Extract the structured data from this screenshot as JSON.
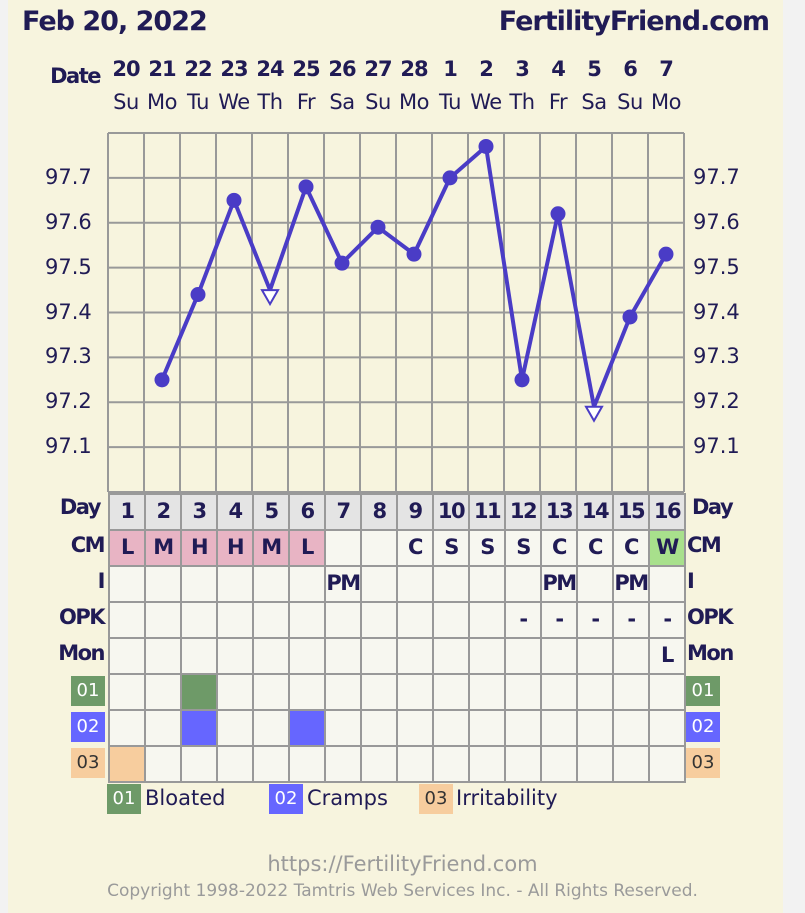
{
  "header": {
    "date": "Feb 20, 2022",
    "site": "FertilityFriend.com"
  },
  "labels": {
    "date": "Date",
    "day": "Day",
    "cm": "CM",
    "i": "I",
    "opk": "OPK",
    "mon": "Mon",
    "s1": "01",
    "s2": "02",
    "s3": "03"
  },
  "colors": {
    "line": "#4a3cc6",
    "grid": "#999999",
    "cm_fill": "#e8b4c4",
    "cm_w_fill": "#a8e08c",
    "day_row": "#e4e4e4",
    "cell": "#f7f7f0",
    "symptom_01": "#6e9a68",
    "symptom_02": "#6666ff",
    "symptom_03": "#f7cd9e"
  },
  "chart_data": {
    "type": "line",
    "ylim": [
      97.0,
      97.8
    ],
    "yticks": [
      "97.1",
      "97.2",
      "97.3",
      "97.4",
      "97.5",
      "97.6",
      "97.7"
    ],
    "grid": true,
    "dates": [
      "20",
      "21",
      "22",
      "23",
      "24",
      "25",
      "26",
      "27",
      "28",
      "1",
      "2",
      "3",
      "4",
      "5",
      "6",
      "7"
    ],
    "weekdays": [
      "Su",
      "Mo",
      "Tu",
      "We",
      "Th",
      "Fr",
      "Sa",
      "Su",
      "Mo",
      "Tu",
      "We",
      "Th",
      "Fr",
      "Sa",
      "Su",
      "Mo"
    ],
    "cycle_days": [
      "1",
      "2",
      "3",
      "4",
      "5",
      "6",
      "7",
      "8",
      "9",
      "10",
      "11",
      "12",
      "13",
      "14",
      "15",
      "16"
    ],
    "temperatures": [
      null,
      97.25,
      97.44,
      97.65,
      97.45,
      97.68,
      97.51,
      97.59,
      97.53,
      97.7,
      97.77,
      97.25,
      97.62,
      97.19,
      97.39,
      97.53
    ],
    "markers": [
      "none",
      "dot",
      "dot",
      "dot",
      "open-triangle",
      "dot",
      "dot",
      "dot",
      "dot",
      "dot",
      "dot",
      "dot",
      "dot",
      "open-triangle",
      "dot",
      "dot"
    ]
  },
  "rows": {
    "cm": [
      "L",
      "M",
      "H",
      "H",
      "M",
      "L",
      "",
      "",
      "C",
      "S",
      "S",
      "S",
      "C",
      "C",
      "C",
      "W"
    ],
    "i": [
      "",
      "",
      "",
      "",
      "",
      "",
      "PM",
      "",
      "",
      "",
      "",
      "",
      "PM",
      "",
      "PM",
      ""
    ],
    "opk": [
      "",
      "",
      "",
      "",
      "",
      "",
      "",
      "",
      "",
      "",
      "",
      "-",
      "-",
      "-",
      "-",
      "-"
    ],
    "mon": [
      "",
      "",
      "",
      "",
      "",
      "",
      "",
      "",
      "",
      "",
      "",
      "",
      "",
      "",
      "",
      "L"
    ],
    "s1": [
      0,
      0,
      1,
      0,
      0,
      0,
      0,
      0,
      0,
      0,
      0,
      0,
      0,
      0,
      0,
      0
    ],
    "s2": [
      0,
      0,
      1,
      0,
      0,
      1,
      0,
      0,
      0,
      0,
      0,
      0,
      0,
      0,
      0,
      0
    ],
    "s3": [
      1,
      0,
      0,
      0,
      0,
      0,
      0,
      0,
      0,
      0,
      0,
      0,
      0,
      0,
      0,
      0
    ]
  },
  "legend": [
    {
      "code": "01",
      "label": "Bloated"
    },
    {
      "code": "02",
      "label": "Cramps"
    },
    {
      "code": "03",
      "label": "Irritability"
    }
  ],
  "footer": {
    "url": "https://FertilityFriend.com",
    "copyright": "Copyright 1998-2022 Tamtris Web Services Inc. - All Rights Reserved."
  }
}
